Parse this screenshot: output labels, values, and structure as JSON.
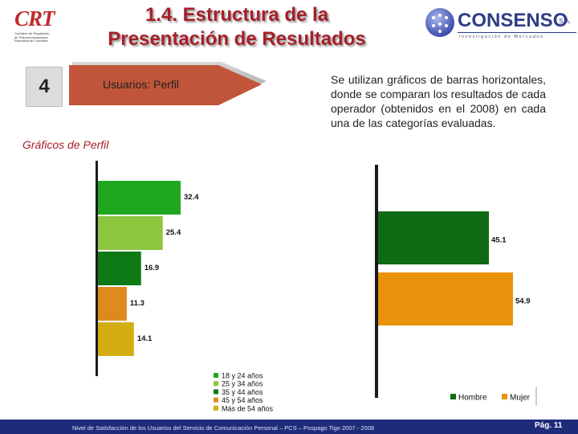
{
  "header": {
    "title_line1": "1.4. Estructura de la",
    "title_line2": "Presentación de Resultados"
  },
  "crt_logo": {
    "text": "CRT",
    "subtitle_lines": [
      "Comisión de Regulación",
      "de Telecomunicaciones",
      "República de Colombia"
    ]
  },
  "consenso_logo": {
    "name": "CONSENSO",
    "suffix": "S.A.",
    "tagline": "Investigación de Mercados"
  },
  "section": {
    "number": "4",
    "label": "Usuarios: Perfil"
  },
  "charts_subtitle": "Gráficos de Perfil",
  "description": "Se utilizan gráficos de barras horizontales, donde se comparan los resultados de cada operador (obtenidos en el 2008) en cada una de las categorías evaluadas.",
  "colors": {
    "title": "#a61f29",
    "arrow": "#c1553a",
    "footer": "#1e2b78",
    "age_18_24": "#1fa81f",
    "age_25_34": "#8cc63f",
    "age_35_44": "#0e7a16",
    "age_45_54": "#e08a1e",
    "age_55_plus": "#d4ad12",
    "hombre": "#0e6b13",
    "mujer": "#e8920c"
  },
  "chart_data": [
    {
      "type": "bar",
      "orientation": "horizontal",
      "categories": [
        "18 y 24 años",
        "25 y 34 años",
        "35 y 44 años",
        "45 y 54 años",
        "Más de 54 años"
      ],
      "values": [
        32.4,
        25.4,
        16.9,
        11.3,
        14.1
      ],
      "value_labels": [
        "32.4",
        "25.4",
        "16.9",
        "11.3",
        "14.1"
      ],
      "legend": [
        "18 y 24 años",
        "25 y 34 años",
        "35 y 44 años",
        "45 y 54 años",
        "Más de 54 años"
      ],
      "legend_position": "bottom",
      "xlim": [
        0,
        40
      ],
      "grid": false
    },
    {
      "type": "bar",
      "orientation": "horizontal",
      "categories": [
        "Hombre",
        "Mujer"
      ],
      "values": [
        45.1,
        54.9
      ],
      "value_labels": [
        "45.1",
        "54.9"
      ],
      "legend": [
        "Hombre",
        "Mujer"
      ],
      "legend_position": "bottom-right",
      "xlim": [
        0,
        60
      ],
      "grid": false
    }
  ],
  "footer": {
    "text": "Nivel de Satisfacción de los Usuarios del Servicio de Comunicación Personal – PCS – Pospago Tigo 2007 - 2008",
    "page": "Pág. 11"
  }
}
